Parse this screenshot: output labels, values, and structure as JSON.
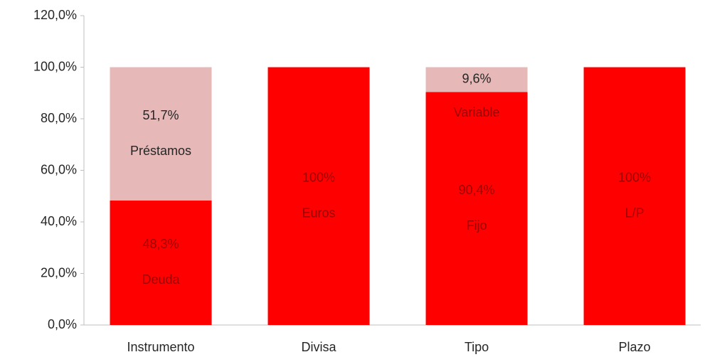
{
  "chart_data": {
    "type": "stacked_bar",
    "categories": [
      "Instrumento",
      "Divisa",
      "Tipo",
      "Plazo"
    ],
    "series": [
      {
        "color": "#ff0000",
        "values": [
          48.3,
          100,
          90.4,
          100
        ],
        "value_labels": [
          "48,3%",
          "100%",
          "90,4%",
          "100%"
        ],
        "labels": [
          "Deuda",
          "Euros",
          "Fijo",
          "L/P"
        ]
      },
      {
        "color": "#e6b8b7",
        "values": [
          51.7,
          0,
          9.6,
          0
        ],
        "value_labels": [
          "51,7%",
          null,
          "9,6%",
          null
        ],
        "labels": [
          "Préstamos",
          null,
          "Variable",
          null
        ]
      }
    ],
    "ylim": [
      0,
      120
    ],
    "yticks": [
      {
        "value": 0,
        "label": "0,0%"
      },
      {
        "value": 20,
        "label": "20,0%"
      },
      {
        "value": 40,
        "label": "40,0%"
      },
      {
        "value": 60,
        "label": "60,0%"
      },
      {
        "value": 80,
        "label": "80,0%"
      },
      {
        "value": 100,
        "label": "100,0%"
      },
      {
        "value": 120,
        "label": "120,0%"
      }
    ],
    "grid": false
  }
}
